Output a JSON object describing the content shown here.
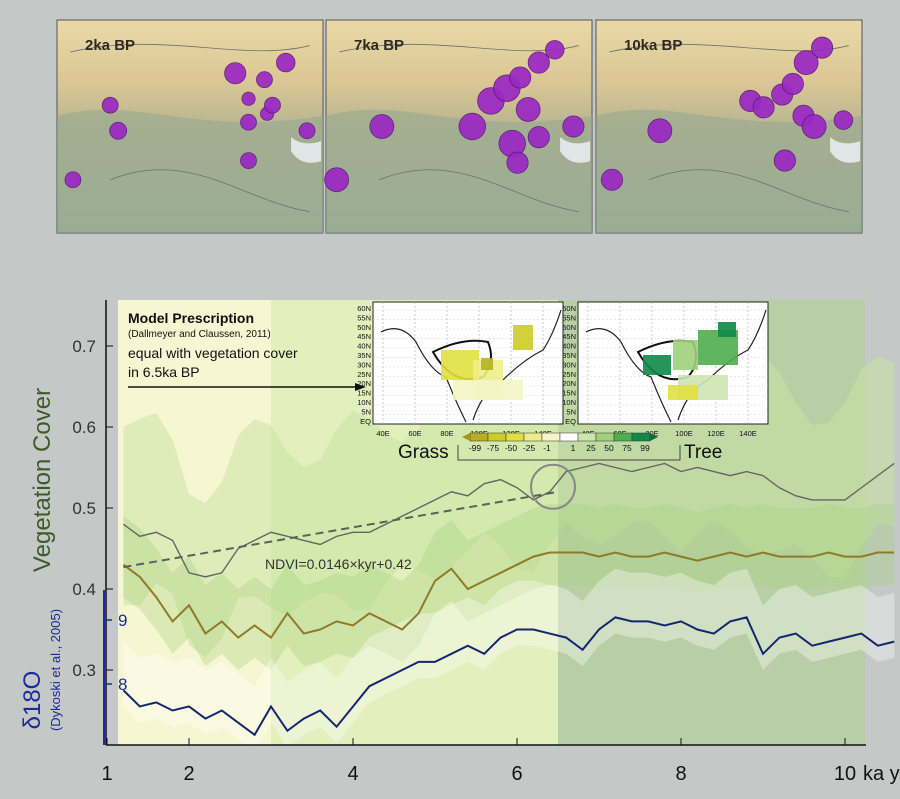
{
  "maps": [
    {
      "label": "2ka BP",
      "sites": [
        [
          0.2,
          0.4,
          0.03
        ],
        [
          0.67,
          0.25,
          0.04
        ],
        [
          0.72,
          0.37,
          0.025
        ],
        [
          0.78,
          0.28,
          0.03
        ],
        [
          0.72,
          0.48,
          0.03
        ],
        [
          0.79,
          0.44,
          0.025
        ],
        [
          0.81,
          0.4,
          0.03
        ],
        [
          0.86,
          0.2,
          0.035
        ],
        [
          0.94,
          0.52,
          0.03
        ],
        [
          0.23,
          0.52,
          0.032
        ],
        [
          0.06,
          0.75,
          0.03
        ],
        [
          0.72,
          0.66,
          0.03
        ]
      ]
    },
    {
      "label": "7ka BP",
      "sites": [
        [
          0.21,
          0.5,
          0.045
        ],
        [
          0.55,
          0.5,
          0.05
        ],
        [
          0.62,
          0.38,
          0.05
        ],
        [
          0.68,
          0.32,
          0.05
        ],
        [
          0.73,
          0.27,
          0.04
        ],
        [
          0.76,
          0.42,
          0.045
        ],
        [
          0.8,
          0.2,
          0.04
        ],
        [
          0.86,
          0.14,
          0.035
        ],
        [
          0.7,
          0.58,
          0.05
        ],
        [
          0.8,
          0.55,
          0.04
        ],
        [
          0.93,
          0.5,
          0.04
        ],
        [
          0.72,
          0.67,
          0.04
        ],
        [
          0.04,
          0.75,
          0.045
        ]
      ]
    },
    {
      "label": "10ka BP",
      "sites": [
        [
          0.24,
          0.52,
          0.045
        ],
        [
          0.58,
          0.38,
          0.04
        ],
        [
          0.63,
          0.41,
          0.04
        ],
        [
          0.7,
          0.35,
          0.04
        ],
        [
          0.74,
          0.3,
          0.04
        ],
        [
          0.79,
          0.2,
          0.045
        ],
        [
          0.85,
          0.13,
          0.04
        ],
        [
          0.78,
          0.45,
          0.04
        ],
        [
          0.82,
          0.5,
          0.045
        ],
        [
          0.93,
          0.47,
          0.035
        ],
        [
          0.71,
          0.66,
          0.04
        ],
        [
          0.06,
          0.75,
          0.04
        ]
      ]
    }
  ],
  "chart_data": {
    "type": "line",
    "xlabel": "ka yr",
    "xlim": [
      1,
      11
    ],
    "xticks": [
      "1",
      "2",
      "4",
      "6",
      "8",
      "10"
    ],
    "ylabel": "Vegetation Cover",
    "ylim": [
      0.18,
      0.75
    ],
    "yticks": [
      "0.3",
      "0.4",
      "0.5",
      "0.6",
      "0.7"
    ],
    "y2label": "δ18O",
    "y2sub": "(Dykoski et al., 2005)",
    "y2ticks": [
      "8",
      "9"
    ],
    "series": [
      {
        "key": "grey",
        "color": "#5d6a60",
        "x": [
          1.2,
          1.4,
          1.6,
          1.8,
          2.0,
          2.2,
          2.4,
          2.6,
          2.8,
          3.0,
          3.2,
          3.4,
          3.6,
          3.8,
          4.0,
          4.2,
          4.4,
          4.6,
          4.8,
          5.0,
          5.2,
          5.4,
          5.6,
          5.8,
          6.0,
          6.2,
          6.4,
          6.6,
          6.8,
          7.0,
          7.2,
          7.4,
          7.6,
          7.8,
          8.0,
          8.2,
          8.4,
          8.6,
          8.8,
          9.0,
          9.2,
          9.4,
          9.6,
          9.8,
          10.0,
          10.2,
          10.4,
          10.6
        ],
        "y": [
          0.48,
          0.465,
          0.47,
          0.46,
          0.42,
          0.415,
          0.42,
          0.45,
          0.46,
          0.47,
          0.465,
          0.46,
          0.455,
          0.465,
          0.47,
          0.47,
          0.48,
          0.49,
          0.5,
          0.51,
          0.52,
          0.515,
          0.53,
          0.535,
          0.525,
          0.51,
          0.52,
          0.545,
          0.55,
          0.555,
          0.55,
          0.545,
          0.55,
          0.555,
          0.545,
          0.55,
          0.545,
          0.54,
          0.545,
          0.54,
          0.525,
          0.515,
          0.51,
          0.51,
          0.51,
          0.525,
          0.54,
          0.555
        ]
      },
      {
        "key": "olive",
        "color": "#8f7a28",
        "x": [
          1.2,
          1.4,
          1.6,
          1.8,
          2.0,
          2.2,
          2.4,
          2.6,
          2.8,
          3.0,
          3.2,
          3.4,
          3.6,
          3.8,
          4.0,
          4.2,
          4.4,
          4.6,
          4.8,
          5.0,
          5.2,
          5.4,
          5.6,
          5.8,
          6.0,
          6.2,
          6.4,
          6.6,
          6.8,
          7.0,
          7.2,
          7.4,
          7.6,
          7.8,
          8.0,
          8.2,
          8.4,
          8.6,
          8.8,
          9.0,
          9.2,
          9.4,
          9.6,
          9.8,
          10.0,
          10.2,
          10.4,
          10.6
        ],
        "y": [
          0.43,
          0.415,
          0.39,
          0.36,
          0.38,
          0.345,
          0.36,
          0.34,
          0.355,
          0.34,
          0.37,
          0.345,
          0.35,
          0.36,
          0.355,
          0.37,
          0.36,
          0.35,
          0.37,
          0.41,
          0.425,
          0.4,
          0.41,
          0.42,
          0.43,
          0.44,
          0.445,
          0.445,
          0.445,
          0.44,
          0.445,
          0.44,
          0.44,
          0.445,
          0.44,
          0.435,
          0.44,
          0.445,
          0.44,
          0.445,
          0.44,
          0.44,
          0.44,
          0.445,
          0.44,
          0.44,
          0.445,
          0.445
        ]
      },
      {
        "key": "navy",
        "color": "#15256e",
        "x": [
          1.2,
          1.4,
          1.6,
          1.8,
          2.0,
          2.2,
          2.4,
          2.6,
          2.8,
          3.0,
          3.2,
          3.4,
          3.6,
          3.8,
          4.0,
          4.2,
          4.4,
          4.6,
          4.8,
          5.0,
          5.2,
          5.4,
          5.6,
          5.8,
          6.0,
          6.2,
          6.4,
          6.6,
          6.8,
          7.0,
          7.2,
          7.4,
          7.6,
          7.8,
          8.0,
          8.2,
          8.4,
          8.6,
          8.8,
          9.0,
          9.2,
          9.4,
          9.6,
          9.8,
          10.0,
          10.2,
          10.4,
          10.6
        ],
        "y": [
          0.275,
          0.255,
          0.26,
          0.25,
          0.255,
          0.24,
          0.25,
          0.235,
          0.22,
          0.255,
          0.225,
          0.24,
          0.25,
          0.23,
          0.255,
          0.28,
          0.29,
          0.3,
          0.31,
          0.31,
          0.32,
          0.33,
          0.32,
          0.34,
          0.35,
          0.35,
          0.345,
          0.34,
          0.325,
          0.35,
          0.365,
          0.36,
          0.36,
          0.355,
          0.36,
          0.35,
          0.345,
          0.36,
          0.365,
          0.32,
          0.34,
          0.345,
          0.33,
          0.335,
          0.34,
          0.345,
          0.33,
          0.335
        ]
      }
    ],
    "trend_label": "NDVI=0.0146×kyr+0.42",
    "annotation": {
      "title": "Model Prescription",
      "citation": "(Dallmeyer and Claussen, 2011)",
      "line1": "equal with vegetation cover",
      "line2": "in 6.5ka BP"
    },
    "inset": {
      "grass": "Grass",
      "tree": "Tree",
      "lat_ticks": [
        "60N",
        "55N",
        "50N",
        "45N",
        "40N",
        "35N",
        "30N",
        "25N",
        "20N",
        "15N",
        "10N",
        "5N",
        "EQ"
      ],
      "lon_ticks": [
        "40E",
        "60E",
        "80E",
        "100E",
        "120E",
        "140E"
      ],
      "colorbar_labels": [
        "-99",
        "-75",
        "-50",
        "-25",
        "-1",
        "1",
        "25",
        "50",
        "75",
        "99"
      ],
      "colorbar_colors": [
        "#b6b022",
        "#cccc2a",
        "#e0e040",
        "#eded88",
        "#f5f5c8",
        "#ffffff",
        "#cde6b0",
        "#9fd07a",
        "#4fae4f",
        "#0e8a4a"
      ]
    }
  }
}
